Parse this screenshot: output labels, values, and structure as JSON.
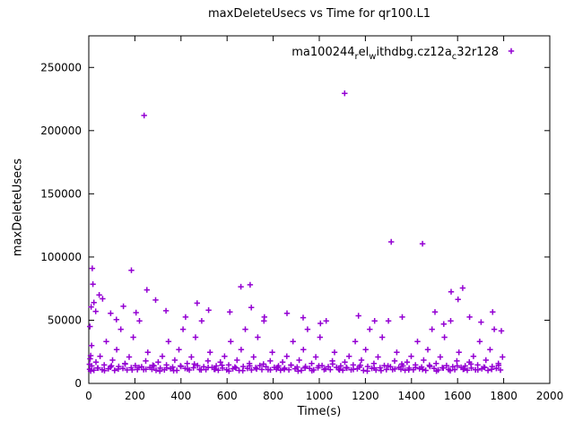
{
  "legend": {
    "plain": "ma100244_rel_withdbg.cz12a_c32r128",
    "segments": [
      {
        "text": "ma100244",
        "sub": false
      },
      {
        "text": "r",
        "sub": true
      },
      {
        "text": "el",
        "sub": false
      },
      {
        "text": "w",
        "sub": true
      },
      {
        "text": "ithdbg.cz12a",
        "sub": false
      },
      {
        "text": "c",
        "sub": true
      },
      {
        "text": "32r128",
        "sub": false
      }
    ]
  },
  "chart_data": {
    "type": "scatter",
    "title": "maxDeleteUsecs vs Time for qr100.L1",
    "xlabel": "Time(s)",
    "ylabel": "maxDeleteUsecs",
    "xlim": [
      0,
      2000
    ],
    "ylim": [
      0,
      275000
    ],
    "xticks": [
      0,
      200,
      400,
      600,
      800,
      1000,
      1200,
      1400,
      1600,
      1800,
      2000
    ],
    "yticks": [
      0,
      50000,
      100000,
      150000,
      200000,
      250000
    ],
    "grid": false,
    "legend_position": "top-right-inside",
    "marker": {
      "shape": "plus",
      "color": "#9400d3"
    },
    "series": [
      {
        "name": "ma100244_rel_withdbg.cz12a_c32r128",
        "points": [
          [
            4,
            11200
          ],
          [
            13,
            13800
          ],
          [
            22,
            10400
          ],
          [
            31,
            16900
          ],
          [
            40,
            12100
          ],
          [
            49,
            21500
          ],
          [
            58,
            10800
          ],
          [
            67,
            14600
          ],
          [
            76,
            33200
          ],
          [
            85,
            11600
          ],
          [
            94,
            12900
          ],
          [
            103,
            18400
          ],
          [
            112,
            10300
          ],
          [
            121,
            26700
          ],
          [
            130,
            13400
          ],
          [
            139,
            42800
          ],
          [
            148,
            11900
          ],
          [
            157,
            15700
          ],
          [
            166,
            10600
          ],
          [
            175,
            20900
          ],
          [
            184,
            12400
          ],
          [
            193,
            36500
          ],
          [
            202,
            14100
          ],
          [
            211,
            11000
          ],
          [
            220,
            49500
          ],
          [
            229,
            13200
          ],
          [
            238,
            10900
          ],
          [
            247,
            17800
          ],
          [
            256,
            24600
          ],
          [
            265,
            12700
          ],
          [
            274,
            11200
          ],
          [
            283,
            13800
          ],
          [
            292,
            10400
          ],
          [
            301,
            16900
          ],
          [
            310,
            12100
          ],
          [
            319,
            21500
          ],
          [
            328,
            10800
          ],
          [
            337,
            14600
          ],
          [
            346,
            33200
          ],
          [
            355,
            11600
          ],
          [
            364,
            12900
          ],
          [
            373,
            18400
          ],
          [
            382,
            10300
          ],
          [
            391,
            26700
          ],
          [
            400,
            13400
          ],
          [
            409,
            42800
          ],
          [
            418,
            11900
          ],
          [
            427,
            15700
          ],
          [
            436,
            10600
          ],
          [
            445,
            20900
          ],
          [
            454,
            12400
          ],
          [
            463,
            36500
          ],
          [
            472,
            14100
          ],
          [
            481,
            11000
          ],
          [
            490,
            49500
          ],
          [
            499,
            13200
          ],
          [
            508,
            10900
          ],
          [
            517,
            17800
          ],
          [
            526,
            24600
          ],
          [
            535,
            12700
          ],
          [
            544,
            11200
          ],
          [
            553,
            13800
          ],
          [
            562,
            10400
          ],
          [
            571,
            16900
          ],
          [
            580,
            12100
          ],
          [
            589,
            21500
          ],
          [
            598,
            10800
          ],
          [
            607,
            14600
          ],
          [
            616,
            33200
          ],
          [
            625,
            11600
          ],
          [
            634,
            12900
          ],
          [
            643,
            18400
          ],
          [
            652,
            10300
          ],
          [
            661,
            26700
          ],
          [
            670,
            13400
          ],
          [
            679,
            42800
          ],
          [
            688,
            11900
          ],
          [
            697,
            15700
          ],
          [
            706,
            10600
          ],
          [
            715,
            20900
          ],
          [
            724,
            12400
          ],
          [
            733,
            36500
          ],
          [
            742,
            14100
          ],
          [
            751,
            11000
          ],
          [
            760,
            49500
          ],
          [
            769,
            13200
          ],
          [
            778,
            10900
          ],
          [
            787,
            17800
          ],
          [
            796,
            24600
          ],
          [
            805,
            12700
          ],
          [
            814,
            11200
          ],
          [
            823,
            13800
          ],
          [
            832,
            10400
          ],
          [
            841,
            16900
          ],
          [
            850,
            12100
          ],
          [
            859,
            21500
          ],
          [
            868,
            10800
          ],
          [
            877,
            14600
          ],
          [
            886,
            33200
          ],
          [
            895,
            11600
          ],
          [
            904,
            12900
          ],
          [
            913,
            18400
          ],
          [
            922,
            10300
          ],
          [
            931,
            26700
          ],
          [
            940,
            13400
          ],
          [
            949,
            42800
          ],
          [
            958,
            11900
          ],
          [
            967,
            15700
          ],
          [
            976,
            10600
          ],
          [
            985,
            20900
          ],
          [
            994,
            12400
          ],
          [
            1003,
            36500
          ],
          [
            1012,
            14100
          ],
          [
            1021,
            11000
          ],
          [
            1030,
            49500
          ],
          [
            1039,
            13200
          ],
          [
            1048,
            10900
          ],
          [
            1057,
            17800
          ],
          [
            1066,
            24600
          ],
          [
            1075,
            12700
          ],
          [
            1084,
            11200
          ],
          [
            1093,
            13800
          ],
          [
            1102,
            10400
          ],
          [
            1111,
            16900
          ],
          [
            1120,
            12100
          ],
          [
            1129,
            21500
          ],
          [
            1138,
            10800
          ],
          [
            1147,
            14600
          ],
          [
            1156,
            33200
          ],
          [
            1165,
            11600
          ],
          [
            1174,
            12900
          ],
          [
            1183,
            18400
          ],
          [
            1192,
            10300
          ],
          [
            1201,
            26700
          ],
          [
            1210,
            13400
          ],
          [
            1219,
            42800
          ],
          [
            1228,
            11900
          ],
          [
            1237,
            15700
          ],
          [
            1246,
            10600
          ],
          [
            1255,
            20900
          ],
          [
            1264,
            12400
          ],
          [
            1273,
            36500
          ],
          [
            1282,
            14100
          ],
          [
            1291,
            11000
          ],
          [
            1300,
            49500
          ],
          [
            1309,
            13200
          ],
          [
            1318,
            10900
          ],
          [
            1327,
            17800
          ],
          [
            1336,
            24600
          ],
          [
            1345,
            12700
          ],
          [
            1354,
            11200
          ],
          [
            1363,
            13800
          ],
          [
            1372,
            10400
          ],
          [
            1381,
            16900
          ],
          [
            1390,
            12100
          ],
          [
            1399,
            21500
          ],
          [
            1408,
            10800
          ],
          [
            1417,
            14600
          ],
          [
            1426,
            33200
          ],
          [
            1435,
            11600
          ],
          [
            1444,
            12900
          ],
          [
            1453,
            18400
          ],
          [
            1462,
            10300
          ],
          [
            1471,
            26700
          ],
          [
            1480,
            13400
          ],
          [
            1489,
            42800
          ],
          [
            1498,
            11900
          ],
          [
            1507,
            15700
          ],
          [
            1516,
            10600
          ],
          [
            1525,
            20900
          ],
          [
            1534,
            12400
          ],
          [
            1543,
            36500
          ],
          [
            1552,
            14100
          ],
          [
            1561,
            11000
          ],
          [
            1570,
            49500
          ],
          [
            1579,
            13200
          ],
          [
            1588,
            10900
          ],
          [
            1597,
            17800
          ],
          [
            1606,
            24600
          ],
          [
            1615,
            12700
          ],
          [
            1624,
            11200
          ],
          [
            1633,
            13800
          ],
          [
            1642,
            10400
          ],
          [
            1651,
            16900
          ],
          [
            1660,
            12100
          ],
          [
            1669,
            21500
          ],
          [
            1678,
            10800
          ],
          [
            1687,
            14600
          ],
          [
            1696,
            33200
          ],
          [
            1705,
            11600
          ],
          [
            1714,
            12900
          ],
          [
            1723,
            18400
          ],
          [
            1732,
            10300
          ],
          [
            1741,
            26700
          ],
          [
            1750,
            13400
          ],
          [
            1759,
            42800
          ],
          [
            1768,
            11900
          ],
          [
            1777,
            15700
          ],
          [
            1786,
            10600
          ],
          [
            1795,
            20900
          ],
          [
            8,
            9800
          ],
          [
            38,
            12200
          ],
          [
            68,
            10100
          ],
          [
            98,
            13900
          ],
          [
            128,
            11400
          ],
          [
            158,
            15300
          ],
          [
            188,
            10700
          ],
          [
            218,
            12600
          ],
          [
            248,
            11100
          ],
          [
            278,
            14400
          ],
          [
            308,
            9800
          ],
          [
            338,
            12200
          ],
          [
            368,
            10100
          ],
          [
            398,
            13900
          ],
          [
            428,
            11400
          ],
          [
            458,
            15300
          ],
          [
            488,
            10700
          ],
          [
            518,
            12600
          ],
          [
            548,
            11100
          ],
          [
            578,
            14400
          ],
          [
            608,
            9800
          ],
          [
            638,
            12200
          ],
          [
            668,
            10100
          ],
          [
            698,
            13900
          ],
          [
            728,
            11400
          ],
          [
            758,
            15300
          ],
          [
            788,
            10700
          ],
          [
            818,
            12600
          ],
          [
            848,
            11100
          ],
          [
            878,
            14400
          ],
          [
            908,
            9800
          ],
          [
            938,
            12200
          ],
          [
            968,
            10100
          ],
          [
            998,
            13900
          ],
          [
            1028,
            11400
          ],
          [
            1058,
            15300
          ],
          [
            1088,
            10700
          ],
          [
            1118,
            12600
          ],
          [
            1148,
            11100
          ],
          [
            1178,
            14400
          ],
          [
            1208,
            9800
          ],
          [
            1238,
            12200
          ],
          [
            1268,
            10100
          ],
          [
            1298,
            13900
          ],
          [
            1328,
            11400
          ],
          [
            1358,
            15300
          ],
          [
            1388,
            10700
          ],
          [
            1418,
            12600
          ],
          [
            1448,
            11100
          ],
          [
            1478,
            14400
          ],
          [
            1508,
            9800
          ],
          [
            1538,
            12200
          ],
          [
            1568,
            10100
          ],
          [
            1598,
            13900
          ],
          [
            1628,
            11400
          ],
          [
            1658,
            15300
          ],
          [
            1688,
            10700
          ],
          [
            1718,
            12600
          ],
          [
            1748,
            11100
          ],
          [
            1778,
            14400
          ],
          [
            3,
            15200
          ],
          [
            5,
            45000
          ],
          [
            6,
            19500
          ],
          [
            8,
            22000
          ],
          [
            10,
            60500
          ],
          [
            12,
            30000
          ],
          [
            15,
            91000
          ],
          [
            18,
            78500
          ],
          [
            22,
            64000
          ],
          [
            30,
            57000
          ],
          [
            45,
            70000
          ],
          [
            60,
            67000
          ],
          [
            95,
            55500
          ],
          [
            120,
            50500
          ],
          [
            150,
            61000
          ],
          [
            185,
            89500
          ],
          [
            205,
            56000
          ],
          [
            240,
            212000
          ],
          [
            252,
            74000
          ],
          [
            290,
            66000
          ],
          [
            335,
            57500
          ],
          [
            420,
            52500
          ],
          [
            470,
            63500
          ],
          [
            520,
            58000
          ],
          [
            612,
            56500
          ],
          [
            660,
            76500
          ],
          [
            700,
            78000
          ],
          [
            705,
            60000
          ],
          [
            762,
            52500
          ],
          [
            860,
            55500
          ],
          [
            930,
            52000
          ],
          [
            1005,
            47500
          ],
          [
            1110,
            229500
          ],
          [
            1170,
            53500
          ],
          [
            1240,
            49500
          ],
          [
            1312,
            112000
          ],
          [
            1360,
            52500
          ],
          [
            1448,
            110500
          ],
          [
            1502,
            56500
          ],
          [
            1540,
            47000
          ],
          [
            1572,
            72500
          ],
          [
            1602,
            66500
          ],
          [
            1622,
            75500
          ],
          [
            1652,
            52500
          ],
          [
            1702,
            48500
          ],
          [
            1752,
            56500
          ],
          [
            1790,
            41500
          ]
        ]
      }
    ]
  }
}
